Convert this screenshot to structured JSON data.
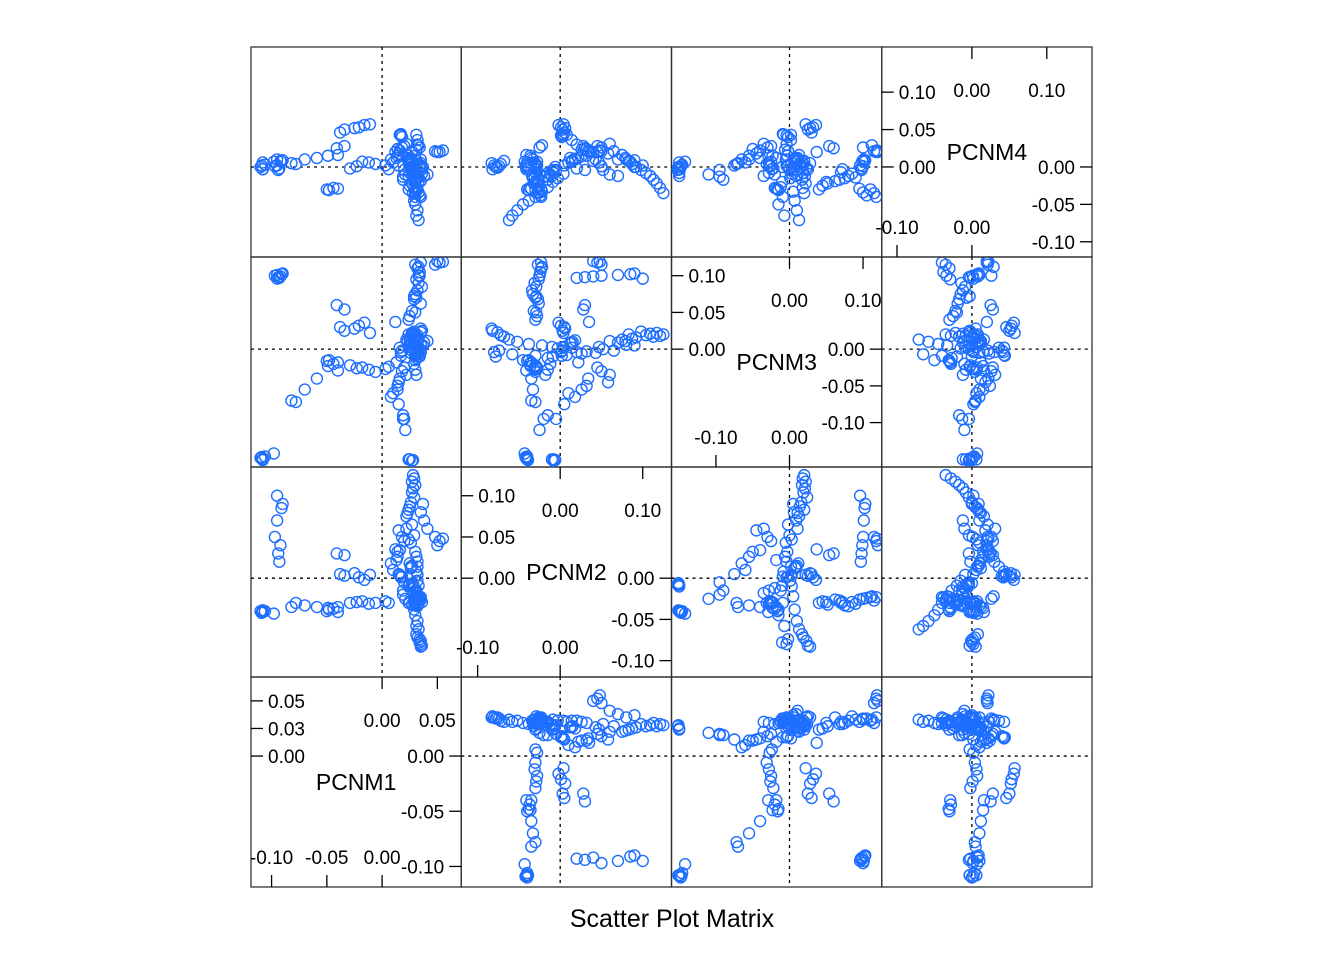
{
  "chart_data": {
    "type": "scatter",
    "subtype": "scatter-matrix",
    "xlabel": "Scatter Plot Matrix",
    "variables": [
      "PCNM1",
      "PCNM2",
      "PCNM3",
      "PCNM4"
    ],
    "series_color": "#1E6EFF",
    "reference_lines": {
      "x": 0,
      "y": 0,
      "style": "dotted"
    },
    "axes": {
      "PCNM1": {
        "range": [
          -0.115,
          0.068
        ],
        "ticks_low": [
          -0.1,
          -0.05,
          0.0
        ],
        "ticks_high": [
          0.0,
          0.05
        ],
        "tick_labels": {
          "-0.10": "-0.10",
          "-0.05": "-0.05",
          "0.00": "0.00",
          "0.05": "0.05"
        }
      },
      "PCNM2": {
        "range": [
          -0.115,
          0.13
        ],
        "ticks_low": [
          -0.1,
          0.0
        ],
        "ticks_high": [
          0.0,
          0.1
        ],
        "tick_labels": {
          "-0.10": "-0.10",
          "-0.05": "-0.05",
          "0.00": "0.00",
          "0.05": "0.05",
          "0.10": "0.10"
        }
      },
      "PCNM3": {
        "range": [
          -0.155,
          0.12
        ],
        "ticks_low": [
          -0.1,
          0.0
        ],
        "ticks_high": [
          0.0,
          0.1
        ],
        "tick_labels": {
          "-0.10": "-0.10",
          "-0.05": "-0.05",
          "0.00": "0.00",
          "0.05": "0.05",
          "0.10": "0.10"
        }
      },
      "PCNM4": {
        "range": [
          -0.115,
          0.155
        ],
        "ticks_low": [
          -0.1,
          0.0
        ],
        "ticks_high": [
          0.0,
          0.1
        ],
        "tick_labels": {
          "-0.10": "-0.10",
          "-0.05": "-0.05",
          "0.00": "0.00",
          "0.05": "0.05",
          "0.10": "0.10"
        }
      }
    },
    "observations": {
      "columns": [
        "PCNM1",
        "PCNM2",
        "PCNM3",
        "PCNM4"
      ],
      "rows": [
        [
          0.028,
          0.125,
          0.02,
          -0.035
        ],
        [
          0.029,
          0.121,
          0.018,
          -0.028
        ],
        [
          0.027,
          0.117,
          0.022,
          -0.022
        ],
        [
          0.03,
          0.113,
          0.017,
          -0.017
        ],
        [
          0.028,
          0.109,
          0.021,
          -0.012
        ],
        [
          0.027,
          0.104,
          0.019,
          -0.008
        ],
        [
          0.029,
          0.098,
          0.024,
          -0.004
        ],
        [
          0.026,
          0.092,
          0.016,
          0.0
        ],
        [
          0.025,
          0.087,
          0.014,
          0.004
        ],
        [
          0.024,
          0.083,
          0.02,
          0.008
        ],
        [
          0.023,
          0.079,
          0.011,
          0.012
        ],
        [
          0.022,
          0.075,
          0.013,
          0.016
        ],
        [
          0.027,
          0.065,
          -0.002,
          0.021
        ],
        [
          0.029,
          0.052,
          0.0,
          -0.004
        ],
        [
          0.024,
          0.047,
          0.003,
          0.006
        ],
        [
          0.026,
          0.043,
          -0.005,
          0.01
        ],
        [
          0.03,
          0.032,
          -0.003,
          0.015
        ],
        [
          0.031,
          0.026,
          -0.006,
          0.023
        ],
        [
          0.032,
          0.02,
          -0.004,
          0.03
        ],
        [
          0.032,
          0.014,
          0.002,
          0.036
        ],
        [
          0.031,
          0.008,
          -0.008,
          0.043
        ],
        [
          0.032,
          0.004,
          0.003,
          -0.009
        ],
        [
          0.032,
          -0.003,
          0.001,
          -0.015
        ],
        [
          0.033,
          -0.009,
          -0.01,
          -0.02
        ],
        [
          0.031,
          -0.015,
          -0.012,
          -0.027
        ],
        [
          0.03,
          -0.022,
          0.005,
          -0.033
        ],
        [
          0.03,
          -0.03,
          -0.009,
          -0.04
        ],
        [
          0.029,
          -0.038,
          0.007,
          -0.045
        ],
        [
          0.03,
          -0.045,
          -0.015,
          -0.05
        ],
        [
          0.032,
          -0.052,
          0.01,
          -0.058
        ],
        [
          0.031,
          -0.058,
          -0.007,
          -0.065
        ],
        [
          0.033,
          -0.062,
          0.013,
          -0.071
        ],
        [
          0.031,
          -0.068,
          0.017,
          0.008
        ],
        [
          0.032,
          -0.072,
          0.019,
          0.004
        ],
        [
          0.034,
          -0.074,
          -0.002,
          0.001
        ],
        [
          0.035,
          -0.076,
          0.023,
          -0.001
        ],
        [
          0.034,
          -0.078,
          -0.01,
          0.0
        ],
        [
          0.035,
          -0.08,
          -0.004,
          0.002
        ],
        [
          0.036,
          -0.082,
          0.025,
          -0.003
        ],
        [
          0.035,
          -0.083,
          0.028,
          0.005
        ],
        [
          -0.11,
          -0.04,
          -0.148,
          0.0
        ],
        [
          -0.109,
          -0.042,
          -0.147,
          0.002
        ],
        [
          -0.108,
          -0.041,
          -0.149,
          -0.003
        ],
        [
          -0.108,
          -0.04,
          -0.15,
          0.006
        ],
        [
          -0.108,
          -0.039,
          -0.151,
          -0.003
        ],
        [
          -0.106,
          -0.04,
          -0.146,
          0.003
        ],
        [
          -0.098,
          -0.043,
          -0.142,
          0.007
        ],
        [
          -0.082,
          -0.035,
          -0.07,
          0.005
        ],
        [
          -0.078,
          -0.03,
          -0.072,
          0.004
        ],
        [
          -0.07,
          -0.033,
          -0.055,
          0.01
        ],
        [
          -0.059,
          -0.035,
          -0.04,
          0.012
        ],
        [
          -0.049,
          -0.036,
          -0.023,
          0.015
        ],
        [
          -0.04,
          -0.041,
          -0.029,
          0.016
        ],
        [
          -0.029,
          -0.03,
          -0.022,
          -0.002
        ],
        [
          -0.023,
          -0.029,
          -0.026,
          0.001
        ],
        [
          -0.018,
          -0.028,
          -0.025,
          0.007
        ],
        [
          -0.012,
          -0.031,
          -0.028,
          0.006
        ],
        [
          -0.006,
          -0.03,
          -0.031,
          0.004
        ],
        [
          0.003,
          -0.028,
          -0.027,
          0.002
        ],
        [
          0.006,
          -0.03,
          -0.024,
          -0.003
        ],
        [
          -0.038,
          0.005,
          0.03,
          0.046
        ],
        [
          -0.034,
          0.003,
          0.025,
          0.05
        ],
        [
          -0.025,
          0.006,
          0.028,
          0.052
        ],
        [
          -0.021,
          0.001,
          0.032,
          0.053
        ],
        [
          -0.016,
          -0.002,
          0.036,
          0.056
        ],
        [
          -0.011,
          0.004,
          0.022,
          0.057
        ],
        [
          -0.041,
          0.03,
          0.06,
          0.025
        ],
        [
          -0.034,
          0.028,
          0.054,
          0.028
        ],
        [
          0.02,
          0.045,
          -0.025,
          0.028
        ],
        [
          0.022,
          0.06,
          -0.035,
          0.031
        ],
        [
          0.018,
          0.05,
          -0.03,
          0.026
        ],
        [
          0.014,
          0.032,
          -0.05,
          0.024
        ],
        [
          0.015,
          0.058,
          -0.045,
          0.018
        ],
        [
          0.016,
          0.034,
          -0.04,
          0.022
        ],
        [
          0.014,
          0.026,
          -0.055,
          0.015
        ],
        [
          0.012,
          0.035,
          0.037,
          0.02
        ],
        [
          0.013,
          0.022,
          -0.018,
          0.012
        ],
        [
          0.008,
          0.018,
          -0.065,
          0.01
        ],
        [
          0.01,
          0.01,
          -0.06,
          0.006
        ],
        [
          0.015,
          0.005,
          -0.075,
          0.002
        ],
        [
          0.02,
          -0.005,
          -0.095,
          -0.004
        ],
        [
          0.021,
          -0.025,
          -0.11,
          -0.01
        ],
        [
          0.019,
          -0.02,
          -0.095,
          -0.013
        ],
        [
          0.019,
          -0.015,
          -0.09,
          -0.017
        ],
        [
          0.024,
          -0.01,
          -0.15,
          -0.012
        ],
        [
          0.025,
          -0.008,
          -0.15,
          -0.008
        ],
        [
          0.027,
          -0.008,
          -0.152,
          -0.004
        ],
        [
          0.028,
          -0.006,
          -0.151,
          0.0
        ],
        [
          0.018,
          0.002,
          -0.002,
          0.04
        ],
        [
          0.017,
          0.001,
          -0.004,
          0.042
        ],
        [
          0.016,
          0.004,
          0.002,
          0.043
        ],
        [
          0.017,
          0.002,
          -0.009,
          0.044
        ],
        [
          -0.05,
          -0.04,
          -0.016,
          -0.03
        ],
        [
          -0.048,
          -0.038,
          -0.015,
          -0.031
        ],
        [
          -0.04,
          -0.035,
          -0.018,
          -0.029
        ],
        [
          -0.044,
          -0.037,
          -0.02,
          -0.028
        ],
        [
          0.024,
          -0.03,
          0.04,
          -0.03
        ],
        [
          0.025,
          -0.028,
          0.045,
          -0.025
        ],
        [
          0.027,
          -0.032,
          0.052,
          -0.022
        ],
        [
          0.03,
          -0.029,
          0.05,
          -0.02
        ],
        [
          0.035,
          -0.026,
          0.062,
          -0.019
        ],
        [
          0.029,
          -0.027,
          0.068,
          -0.017
        ],
        [
          0.03,
          -0.033,
          0.075,
          -0.015
        ],
        [
          0.032,
          -0.034,
          0.08,
          -0.012
        ],
        [
          0.036,
          -0.029,
          0.085,
          -0.009
        ],
        [
          0.033,
          -0.031,
          0.09,
          -0.014
        ],
        [
          0.031,
          -0.03,
          0.07,
          -0.007
        ],
        [
          0.029,
          -0.029,
          0.072,
          -0.003
        ],
        [
          0.031,
          -0.026,
          0.095,
          -0.029
        ],
        [
          0.033,
          -0.025,
          0.1,
          -0.034
        ],
        [
          0.034,
          -0.024,
          0.105,
          -0.038
        ],
        [
          0.03,
          -0.027,
          0.115,
          -0.035
        ],
        [
          0.032,
          -0.023,
          0.11,
          -0.03
        ],
        [
          0.035,
          -0.023,
          0.118,
          -0.04
        ],
        [
          0.034,
          -0.025,
          0.1,
          0.026
        ],
        [
          0.033,
          -0.022,
          0.112,
          0.029
        ],
        [
          0.031,
          -0.018,
          -0.035,
          -0.012
        ],
        [
          0.03,
          -0.015,
          -0.028,
          -0.008
        ],
        [
          0.029,
          -0.012,
          -0.02,
          -0.01
        ],
        [
          0.028,
          -0.01,
          0.003,
          -0.005
        ],
        [
          0.026,
          0.012,
          0.008,
          0.012
        ],
        [
          0.027,
          0.015,
          0.01,
          0.009
        ],
        [
          0.025,
          0.018,
          0.012,
          0.011
        ],
        [
          0.026,
          0.014,
          0.008,
          0.007
        ],
        [
          0.037,
          0.09,
          0.005,
          0.0
        ],
        [
          0.035,
          0.08,
          0.006,
          0.01
        ],
        [
          0.038,
          0.07,
          0.009,
          -0.012
        ],
        [
          0.041,
          0.06,
          0.011,
          -0.01
        ],
        [
          -0.09,
          0.09,
          0.103,
          0.009
        ],
        [
          -0.091,
          0.085,
          0.102,
          0.007
        ],
        [
          -0.095,
          0.07,
          0.101,
          0.01
        ],
        [
          -0.097,
          0.05,
          0.1,
          0.001
        ],
        [
          -0.092,
          0.04,
          0.099,
          0.008
        ],
        [
          -0.094,
          0.03,
          0.098,
          -0.004
        ],
        [
          -0.093,
          0.02,
          0.097,
          -0.002
        ],
        [
          -0.095,
          0.1,
          0.096,
          0.002
        ],
        [
          0.05,
          0.04,
          0.12,
          0.02
        ],
        [
          0.048,
          0.05,
          0.115,
          0.021
        ],
        [
          0.052,
          0.045,
          0.118,
          0.02
        ],
        [
          0.055,
          0.048,
          0.119,
          0.022
        ]
      ]
    }
  }
}
